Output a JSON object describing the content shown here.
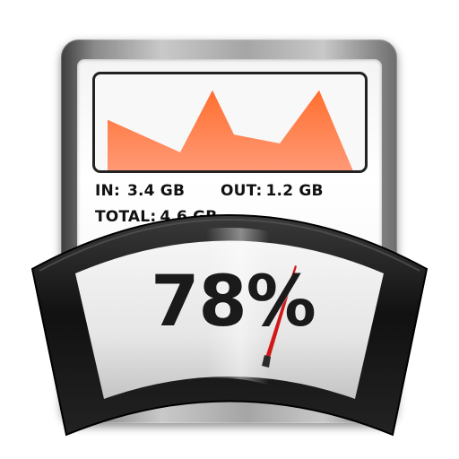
{
  "stats": {
    "in_label": "IN:",
    "in_value": "3.4 GB",
    "out_label": "OUT:",
    "out_value": "1.2 GB",
    "total_label": "TOTAL:",
    "total_value": "4.6 GB"
  },
  "gauge": {
    "percent_text": "78%",
    "level": 0.78
  },
  "chart_data": {
    "type": "area",
    "values": [
      0.54,
      0.21,
      0.84,
      0.39,
      0.3,
      0.84,
      0.02
    ],
    "ylim": [
      0,
      1
    ],
    "grid": false
  },
  "colors": {
    "graph_fill_top": "#ff6f2f",
    "graph_fill_bottom": "#ff9a78",
    "needle": "#d01818",
    "bezel": "#1a1a1a"
  }
}
